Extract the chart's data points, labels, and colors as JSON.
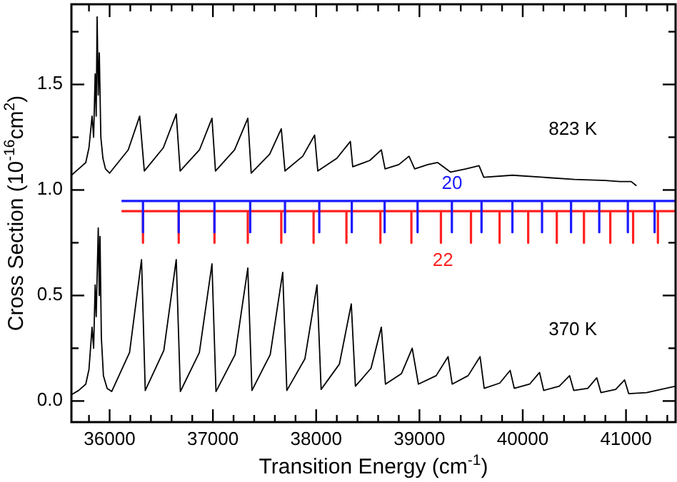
{
  "chart_data": {
    "type": "line",
    "xlabel": "Transition Energy (cm$^{-1}$)",
    "ylabel": "Cross Section (10$^{-16}$cm$^{2}$)",
    "xlim": [
      35630,
      41480
    ],
    "ylim": [
      -0.1,
      1.88
    ],
    "xticks": [
      {
        "value": 35800,
        "label": null
      },
      36000,
      {
        "value": 36200,
        "label": null
      },
      {
        "value": 36400,
        "label": null
      },
      {
        "value": 36600,
        "label": null
      },
      {
        "value": 36800,
        "label": null
      },
      37000,
      {
        "value": 37200,
        "label": null
      },
      {
        "value": 37400,
        "label": null
      },
      {
        "value": 37600,
        "label": null
      },
      {
        "value": 37800,
        "label": null
      },
      38000,
      {
        "value": 38200,
        "label": null
      },
      {
        "value": 38400,
        "label": null
      },
      {
        "value": 38600,
        "label": null
      },
      {
        "value": 38800,
        "label": null
      },
      39000,
      {
        "value": 39200,
        "label": null
      },
      {
        "value": 39400,
        "label": null
      },
      {
        "value": 39600,
        "label": null
      },
      {
        "value": 39800,
        "label": null
      },
      40000,
      {
        "value": 40200,
        "label": null
      },
      {
        "value": 40400,
        "label": null
      },
      {
        "value": 40600,
        "label": null
      },
      {
        "value": 40800,
        "label": null
      },
      41000,
      {
        "value": 41200,
        "label": null
      },
      {
        "value": 41400,
        "label": null
      }
    ],
    "yticks": [
      {
        "value": 0,
        "label": "0.0"
      },
      {
        "value": 0.25,
        "label": null
      },
      {
        "value": 0.5,
        "label": "0.5"
      },
      {
        "value": 0.75,
        "label": null
      },
      {
        "value": 1,
        "label": "1.0"
      },
      {
        "value": 1.25,
        "label": null
      },
      {
        "value": 1.5,
        "label": "1.5"
      },
      {
        "value": 1.75,
        "label": null
      }
    ],
    "grid": false,
    "marker": "none",
    "line_style": "solid",
    "series": [
      {
        "name": "823 K",
        "color": "#000000",
        "x": [
          35630,
          35700,
          35769,
          35800,
          35830,
          35845,
          35860,
          35870,
          35879,
          35890,
          35900,
          35915,
          35935,
          35960,
          36000,
          36180,
          36291,
          36336,
          36520,
          36645,
          36683,
          36870,
          36991,
          37025,
          37210,
          37338,
          37371,
          37550,
          37662,
          37698,
          37870,
          37985,
          38016,
          38200,
          38331,
          38354,
          38520,
          38631,
          38667,
          38800,
          38899,
          38954,
          39080,
          39176,
          39300,
          39450,
          39577,
          39623,
          39900,
          40200,
          40500,
          40800,
          40939,
          41050,
          41101
        ],
        "values": [
          1.07,
          1.1,
          1.13,
          1.2,
          1.35,
          1.25,
          1.55,
          1.35,
          1.82,
          1.45,
          1.65,
          1.25,
          1.15,
          1.1,
          1.08,
          1.19,
          1.35,
          1.09,
          1.2,
          1.36,
          1.09,
          1.19,
          1.34,
          1.09,
          1.19,
          1.34,
          1.08,
          1.17,
          1.29,
          1.09,
          1.16,
          1.26,
          1.09,
          1.15,
          1.23,
          1.11,
          1.14,
          1.19,
          1.1,
          1.12,
          1.16,
          1.1,
          1.12,
          1.13,
          1.085,
          1.1,
          1.115,
          1.06,
          1.07,
          1.06,
          1.05,
          1.045,
          1.04,
          1.04,
          1.02
        ]
      },
      {
        "name": "370 K",
        "color": "#000000",
        "x": [
          35630,
          35700,
          35769,
          35800,
          35830,
          35845,
          35860,
          35870,
          35890,
          35900,
          35907,
          35920,
          35940,
          35976,
          36020,
          36193,
          36309,
          36345,
          36525,
          36645,
          36685,
          36869,
          36991,
          37030,
          37215,
          37338,
          37378,
          37555,
          37676,
          37716,
          37891,
          38008,
          38048,
          38225,
          38340,
          38380,
          38531,
          38631,
          38671,
          38826,
          38930,
          38990,
          39162,
          39277,
          39317,
          39471,
          39587,
          39627,
          39778,
          39878,
          39918,
          40067,
          40163,
          40203,
          40354,
          40454,
          40494,
          40630,
          40717,
          40757,
          40900,
          40986,
          41026,
          41200,
          41480
        ],
        "values": [
          0.03,
          0.05,
          0.08,
          0.15,
          0.35,
          0.25,
          0.55,
          0.4,
          0.82,
          0.5,
          0.78,
          0.3,
          0.12,
          0.06,
          0.045,
          0.23,
          0.67,
          0.05,
          0.24,
          0.67,
          0.045,
          0.23,
          0.65,
          0.045,
          0.22,
          0.63,
          0.05,
          0.22,
          0.61,
          0.05,
          0.2,
          0.55,
          0.055,
          0.175,
          0.46,
          0.07,
          0.155,
          0.35,
          0.08,
          0.13,
          0.25,
          0.08,
          0.12,
          0.21,
          0.08,
          0.12,
          0.21,
          0.06,
          0.085,
          0.145,
          0.06,
          0.08,
          0.135,
          0.05,
          0.07,
          0.12,
          0.05,
          0.06,
          0.11,
          0.04,
          0.055,
          0.1,
          0.035,
          0.04,
          0.07
        ]
      },
      {
        "name": "20",
        "color": "#1a1aff",
        "x": [
          36115,
          36323,
          36323,
          36323,
          36669,
          36669,
          36669,
          37015,
          37015,
          37015,
          37361,
          37361,
          37361,
          37698,
          37698,
          37698,
          38030,
          38030,
          38030,
          38345,
          38345,
          38345,
          38663,
          38663,
          38663,
          38982,
          38982,
          38982,
          39314,
          39314,
          39314,
          39601,
          39601,
          39601,
          39900,
          39900,
          39900,
          40187,
          40187,
          40187,
          40468,
          40468,
          40468,
          40741,
          40741,
          40741,
          41018,
          41018,
          41018,
          41277,
          41277,
          41277,
          41480
        ],
        "values": [
          0.948,
          0.948,
          0.8,
          0.948,
          0.948,
          0.8,
          0.948,
          0.948,
          0.8,
          0.948,
          0.948,
          0.8,
          0.948,
          0.948,
          0.8,
          0.948,
          0.948,
          0.8,
          0.948,
          0.948,
          0.8,
          0.948,
          0.948,
          0.8,
          0.948,
          0.948,
          0.8,
          0.948,
          0.948,
          0.8,
          0.948,
          0.948,
          0.8,
          0.948,
          0.948,
          0.8,
          0.948,
          0.948,
          0.8,
          0.948,
          0.948,
          0.8,
          0.948,
          0.948,
          0.8,
          0.948,
          0.948,
          0.8,
          0.948,
          0.948,
          0.8,
          0.948,
          0.948
        ]
      },
      {
        "name": "22",
        "color": "#ff2020",
        "x": [
          36115,
          36323,
          36323,
          36323,
          36669,
          36669,
          36669,
          37015,
          37015,
          37015,
          37338,
          37338,
          37338,
          37662,
          37662,
          37662,
          37975,
          37975,
          37975,
          38293,
          38293,
          38293,
          38622,
          38622,
          38622,
          38922,
          38922,
          38922,
          39208,
          39208,
          39208,
          39499,
          39499,
          39499,
          39776,
          39776,
          39776,
          40053,
          40053,
          40053,
          40330,
          40330,
          40330,
          40593,
          40593,
          40593,
          40848,
          40848,
          40848,
          41069,
          41069,
          41069,
          41309,
          41309,
          41309,
          41480
        ],
        "values": [
          0.9,
          0.9,
          0.75,
          0.9,
          0.9,
          0.75,
          0.9,
          0.9,
          0.75,
          0.9,
          0.9,
          0.75,
          0.9,
          0.9,
          0.75,
          0.9,
          0.9,
          0.75,
          0.9,
          0.9,
          0.75,
          0.9,
          0.9,
          0.75,
          0.9,
          0.9,
          0.75,
          0.9,
          0.9,
          0.75,
          0.9,
          0.9,
          0.75,
          0.9,
          0.9,
          0.75,
          0.9,
          0.9,
          0.75,
          0.9,
          0.9,
          0.75,
          0.9,
          0.9,
          0.75,
          0.9,
          0.9,
          0.75,
          0.9,
          0.9,
          0.75,
          0.9,
          0.9,
          0.75,
          0.9,
          0.9
        ]
      }
    ]
  }
}
